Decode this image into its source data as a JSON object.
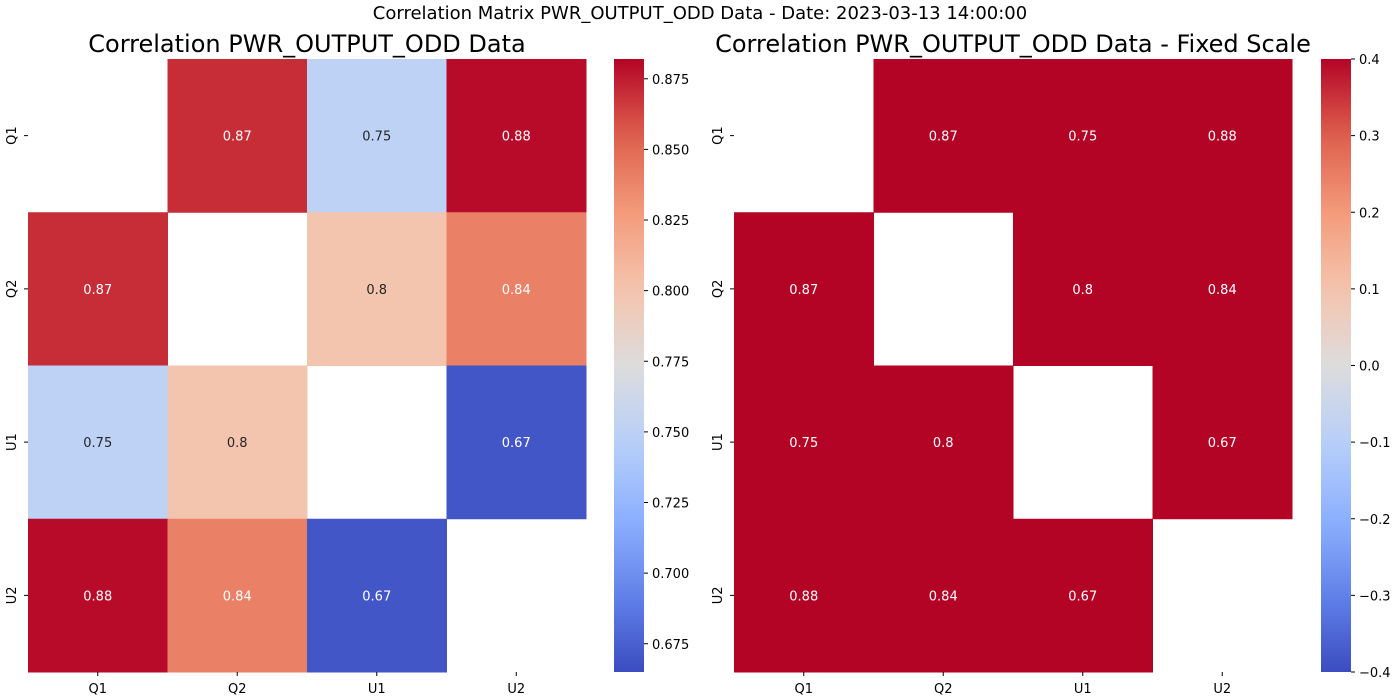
{
  "suptitle": "Correlation Matrix PWR_OUTPUT_ODD Data - Date: 2023-03-13 14:00:00",
  "chart_data": [
    {
      "type": "heatmap",
      "title": "Correlation PWR_OUTPUT_ODD Data",
      "x_categories": [
        "Q1",
        "Q2",
        "U1",
        "U2"
      ],
      "y_categories": [
        "Q1",
        "Q2",
        "U1",
        "U2"
      ],
      "values": [
        [
          null,
          0.87,
          0.75,
          0.88
        ],
        [
          0.87,
          null,
          0.8,
          0.84
        ],
        [
          0.75,
          0.8,
          null,
          0.67
        ],
        [
          0.88,
          0.84,
          0.67,
          null
        ]
      ],
      "colormap": "coolwarm",
      "vmin": 0.665,
      "vmax": 0.882,
      "colorbar_ticks": [
        "0.675",
        "0.700",
        "0.725",
        "0.750",
        "0.775",
        "0.800",
        "0.825",
        "0.850",
        "0.875"
      ],
      "annotation_color_light": "#ffffff",
      "annotation_color_dark": "#262626"
    },
    {
      "type": "heatmap",
      "title": "Correlation PWR_OUTPUT_ODD Data - Fixed Scale",
      "x_categories": [
        "Q1",
        "Q2",
        "U1",
        "U2"
      ],
      "y_categories": [
        "Q1",
        "Q2",
        "U1",
        "U2"
      ],
      "values": [
        [
          null,
          0.87,
          0.75,
          0.88
        ],
        [
          0.87,
          null,
          0.8,
          0.84
        ],
        [
          0.75,
          0.8,
          null,
          0.67
        ],
        [
          0.88,
          0.84,
          0.67,
          null
        ]
      ],
      "colormap": "coolwarm",
      "vmin": -0.4,
      "vmax": 0.4,
      "colorbar_ticks": [
        "−0.4",
        "−0.3",
        "−0.2",
        "−0.1",
        "0.0",
        "0.1",
        "0.2",
        "0.3",
        "0.4"
      ],
      "annotation_color_light": "#ffffff",
      "annotation_color_dark": "#262626"
    }
  ]
}
